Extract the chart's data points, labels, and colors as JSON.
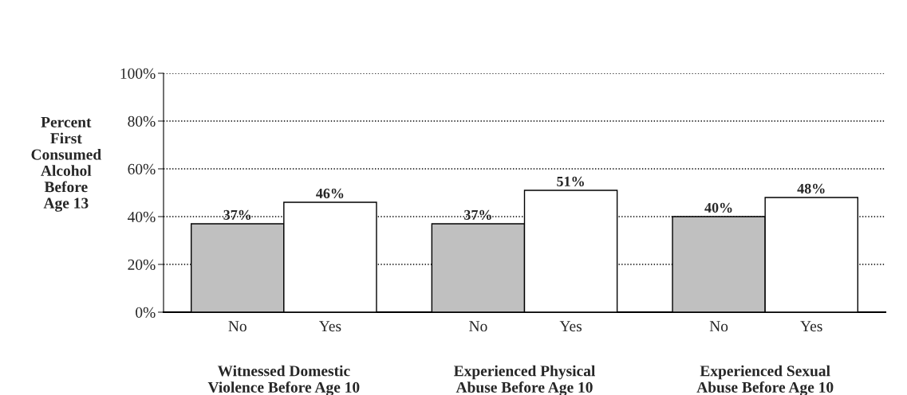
{
  "chart_data": {
    "type": "bar",
    "categories": [
      "Witnessed Domestic\nViolence Before Age 10",
      "Experienced Physical\nAbuse Before Age 10",
      "Experienced Sexual\nAbuse Before Age 10"
    ],
    "series": [
      {
        "name": "No",
        "color": "#c0c0c0",
        "values": [
          37,
          37,
          40
        ]
      },
      {
        "name": "Yes",
        "color": "#ffffff",
        "values": [
          46,
          51,
          48
        ]
      }
    ],
    "ylabel": "Percent\nFirst\nConsumed\nAlcohol\nBefore\nAge 13",
    "ylim": [
      0,
      100
    ],
    "yticks": [
      {
        "value": 0,
        "label": "0%"
      },
      {
        "value": 20,
        "label": "20%"
      },
      {
        "value": 40,
        "label": "40%"
      },
      {
        "value": 60,
        "label": "60%"
      },
      {
        "value": 80,
        "label": "80%"
      },
      {
        "value": 100,
        "label": "100%"
      }
    ],
    "value_labels": [
      [
        "37%",
        "37%",
        "40%"
      ],
      [
        "46%",
        "51%",
        "48%"
      ]
    ],
    "grid": "y",
    "legend": false
  }
}
